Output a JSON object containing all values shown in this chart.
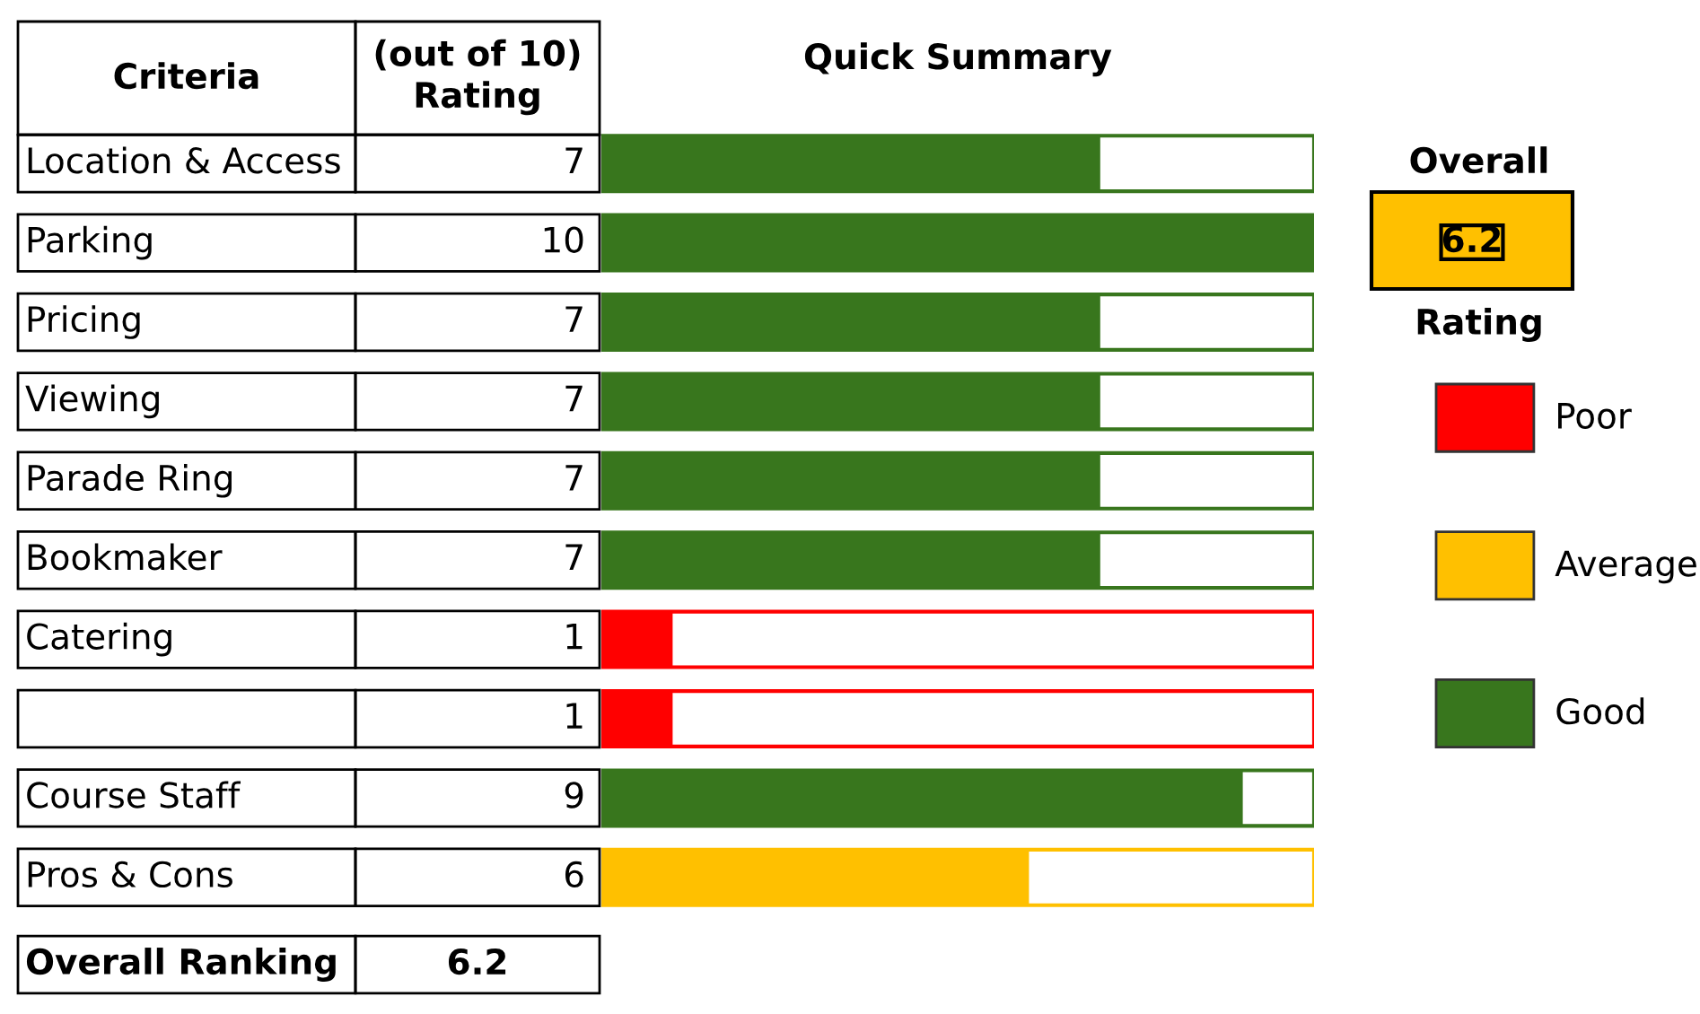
{
  "chart_data": {
    "type": "bar",
    "orientation": "horizontal",
    "title": "Quick Summary",
    "categories": [
      "Location & Access",
      "Parking",
      "Pricing",
      "Viewing",
      "Parade Ring",
      "Bookmaker",
      "Catering",
      null,
      "Course Staff",
      "Pros & Cons"
    ],
    "series": [
      {
        "name": "Poor",
        "color": "#ff0000",
        "values": [
          null,
          null,
          null,
          null,
          null,
          null,
          1,
          1,
          null,
          null
        ]
      },
      {
        "name": "Average",
        "color": "#ffc000",
        "values": [
          null,
          null,
          null,
          null,
          null,
          null,
          null,
          null,
          null,
          6
        ]
      },
      {
        "name": "Good",
        "color": "#38761d",
        "values": [
          7,
          10,
          7,
          7,
          7,
          7,
          null,
          null,
          9,
          null
        ]
      }
    ],
    "xlim": [
      0,
      10
    ],
    "data_labels": true,
    "legend": "right",
    "annotations": [
      "Criteria",
      "(out of 10)\nRating",
      "Overall Ranking",
      "6.2",
      "Overall",
      "6.2",
      "Rating"
    ]
  }
}
